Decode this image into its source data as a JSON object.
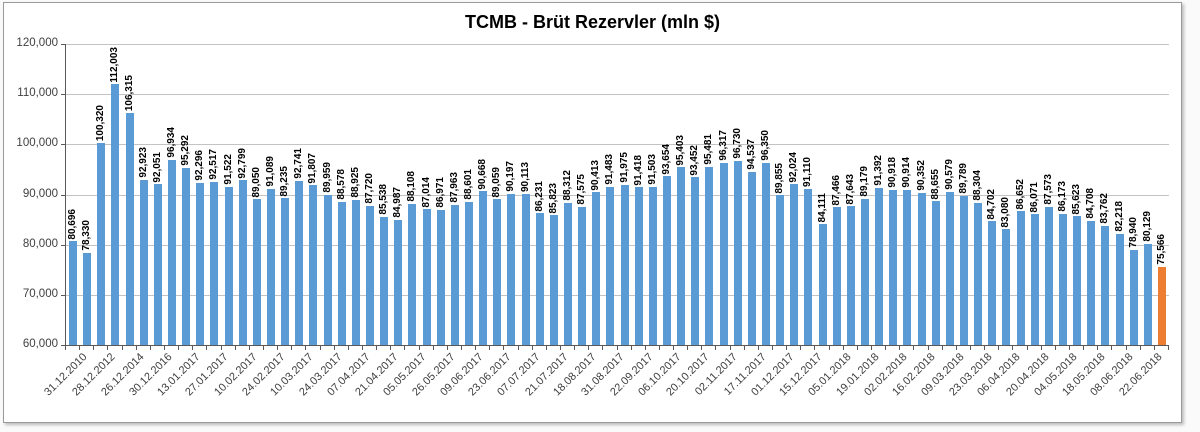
{
  "title": "TCMB - Brüt Rezervler (mln $)",
  "chart_data": {
    "type": "bar",
    "title": "TCMB - Brüt Rezervler (mln $)",
    "ylabel": "",
    "xlabel": "",
    "ylim": [
      60000,
      120000
    ],
    "ytick_step": 10000,
    "ytick_labels": [
      "120,000",
      "110,000",
      "100,000",
      "90,000",
      "80,000",
      "70,000",
      "60,000"
    ],
    "grid": true,
    "legend": "none",
    "bar_color": "#5b9bd5",
    "highlight_color": "#ed7d31",
    "highlight_index": 77,
    "x_label_every": 2,
    "x_tick_labels": [
      "31.12.2010",
      "28.12.2012",
      "26.12.2014",
      "30.12.2016",
      "13.01.2017",
      "27.01.2017",
      "10.02.2017",
      "24.02.2017",
      "10.03.2017",
      "24.03.2017",
      "07.04.2017",
      "21.04.2017",
      "05.05.2017",
      "26.05.2017",
      "09.06.2017",
      "23.06.2017",
      "07.07.2017",
      "21.07.2017",
      "18.08.2017",
      "31.08.2017",
      "22.09.2017",
      "06.10.2017",
      "20.10.2017",
      "02.11.2017",
      "17.11.2017",
      "01.12.2017",
      "15.12.2017",
      "05.01.2018",
      "19.01.2018",
      "02.02.2018",
      "16.02.2018",
      "09.03.2018",
      "23.03.2018",
      "06.04.2018",
      "20.04.2018",
      "04.05.2018",
      "18.05.2018",
      "08.06.2018",
      "22.06.2018"
    ],
    "values": [
      80696,
      78330,
      100320,
      112003,
      106315,
      92923,
      92051,
      96934,
      95292,
      92296,
      92517,
      91522,
      92799,
      89050,
      91089,
      89235,
      92741,
      91807,
      89959,
      88578,
      88925,
      87720,
      85538,
      84987,
      88108,
      87014,
      86971,
      87963,
      88601,
      90668,
      89059,
      90197,
      90113,
      86231,
      85823,
      88312,
      87575,
      90413,
      91483,
      91975,
      91418,
      91503,
      93654,
      95403,
      93452,
      95481,
      96317,
      96730,
      94537,
      96350,
      89855,
      92024,
      91110,
      84111,
      87466,
      87643,
      89179,
      91392,
      90918,
      90914,
      90352,
      88655,
      90579,
      89789,
      88304,
      84702,
      83080,
      86652,
      86071,
      87573,
      86173,
      85623,
      84708,
      83762,
      82218,
      78940,
      80129,
      75566
    ],
    "data_labels": true
  }
}
